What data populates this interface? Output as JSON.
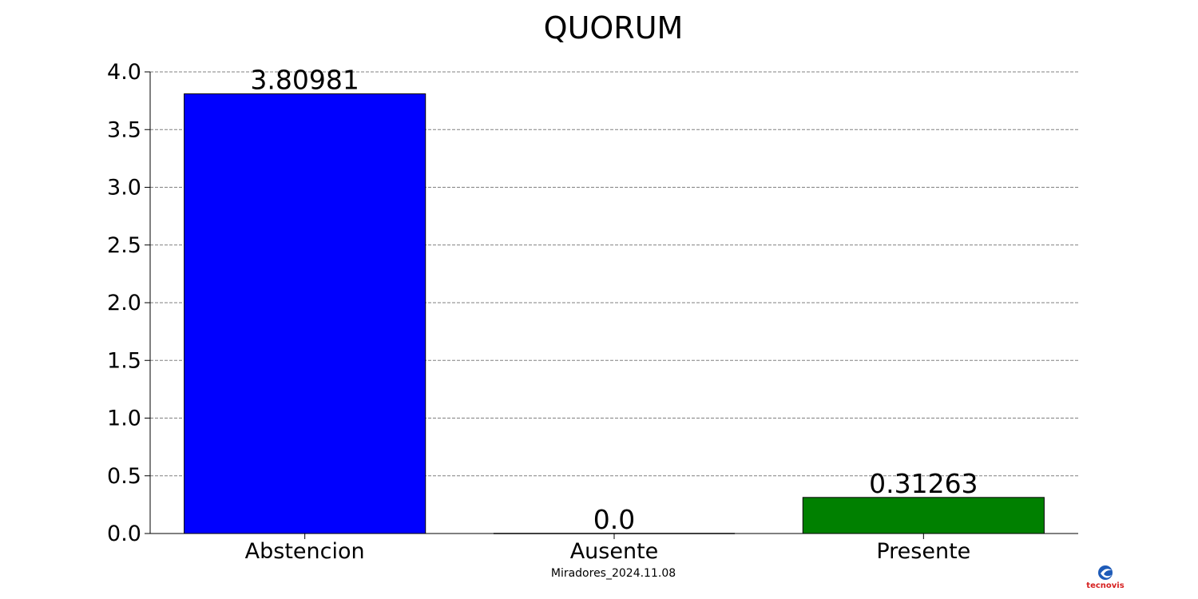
{
  "chart_data": {
    "type": "bar",
    "title": "QUORUM",
    "categories": [
      "Abstencion",
      "Ausente",
      "Presente"
    ],
    "values": [
      3.80981,
      0.0,
      0.31263
    ],
    "value_labels": [
      "3.80981",
      "0.0",
      "0.31263"
    ],
    "colors": [
      "#0000ff",
      "#008000",
      "#008000"
    ],
    "ylim": [
      0,
      4
    ],
    "yticks": [
      0.0,
      0.5,
      1.0,
      1.5,
      2.0,
      2.5,
      3.0,
      3.5,
      4.0
    ],
    "ytick_labels": [
      "0.0",
      "0.5",
      "1.0",
      "1.5",
      "2.0",
      "2.5",
      "3.0",
      "3.5",
      "4.0"
    ],
    "grid": "horizontal-dashed",
    "xlabel": "Miradores_2024.11.08",
    "ylabel": ""
  },
  "logo": {
    "text": "tecnovis"
  }
}
